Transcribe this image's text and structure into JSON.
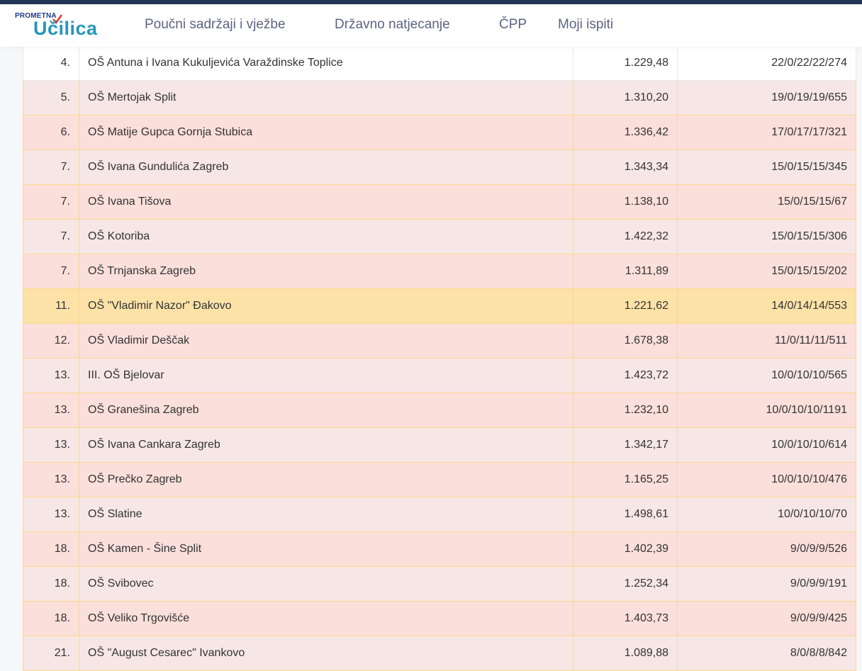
{
  "header": {
    "logo": {
      "top": "PROMETNA",
      "main": "Učilica"
    },
    "nav": [
      "Poučni sadržaji i vježbe",
      "Državno natjecanje",
      "ČPP",
      "Moji ispiti"
    ]
  },
  "colors": {
    "topbar": "#1e3557",
    "row_odd": "#f6e7e6",
    "row_even": "#fbdfdb",
    "row_highlight": "#fde2a7",
    "border": "#fcd98a"
  },
  "rows": [
    {
      "rank": "4.",
      "school": "OŠ Antuna i Ivana Kukuljevića Varaždinske Toplice",
      "points": "1.229,48",
      "result": "22/0/22/22/274"
    },
    {
      "rank": "5.",
      "school": "OŠ Mertojak Split",
      "points": "1.310,20",
      "result": "19/0/19/19/655"
    },
    {
      "rank": "6.",
      "school": "OŠ Matije Gupca Gornja Stubica",
      "points": "1.336,42",
      "result": "17/0/17/17/321"
    },
    {
      "rank": "7.",
      "school": "OŠ Ivana Gundulića Zagreb",
      "points": "1.343,34",
      "result": "15/0/15/15/345"
    },
    {
      "rank": "7.",
      "school": "OŠ Ivana Tišova",
      "points": "1.138,10",
      "result": "15/0/15/15/67"
    },
    {
      "rank": "7.",
      "school": "OŠ Kotoriba",
      "points": "1.422,32",
      "result": "15/0/15/15/306"
    },
    {
      "rank": "7.",
      "school": "OŠ Trnjanska Zagreb",
      "points": "1.311,89",
      "result": "15/0/15/15/202"
    },
    {
      "rank": "11.",
      "school": "OŠ \"Vladimir Nazor\" Đakovo",
      "points": "1.221,62",
      "result": "14/0/14/14/553"
    },
    {
      "rank": "12.",
      "school": "OŠ Vladimir Deščak",
      "points": "1.678,38",
      "result": "11/0/11/11/511"
    },
    {
      "rank": "13.",
      "school": "III. OŠ Bjelovar",
      "points": "1.423,72",
      "result": "10/0/10/10/565"
    },
    {
      "rank": "13.",
      "school": "OŠ Granešina Zagreb",
      "points": "1.232,10",
      "result": "10/0/10/10/1191"
    },
    {
      "rank": "13.",
      "school": "OŠ Ivana Cankara Zagreb",
      "points": "1.342,17",
      "result": "10/0/10/10/614"
    },
    {
      "rank": "13.",
      "school": "OŠ Prečko Zagreb",
      "points": "1.165,25",
      "result": "10/0/10/10/476"
    },
    {
      "rank": "13.",
      "school": "OŠ Slatine",
      "points": "1.498,61",
      "result": "10/0/10/10/70"
    },
    {
      "rank": "18.",
      "school": "OŠ Kamen - Šine Split",
      "points": "1.402,39",
      "result": "9/0/9/9/526"
    },
    {
      "rank": "18.",
      "school": "OŠ Svibovec",
      "points": "1.252,34",
      "result": "9/0/9/9/191"
    },
    {
      "rank": "18.",
      "school": "OŠ Veliko Trgovišće",
      "points": "1.403,73",
      "result": "9/0/9/9/425"
    },
    {
      "rank": "21.",
      "school": "OŠ \"August Cesarec\" Ivankovo",
      "points": "1.089,88",
      "result": "8/0/8/8/842"
    }
  ],
  "highlighted_row": 7
}
